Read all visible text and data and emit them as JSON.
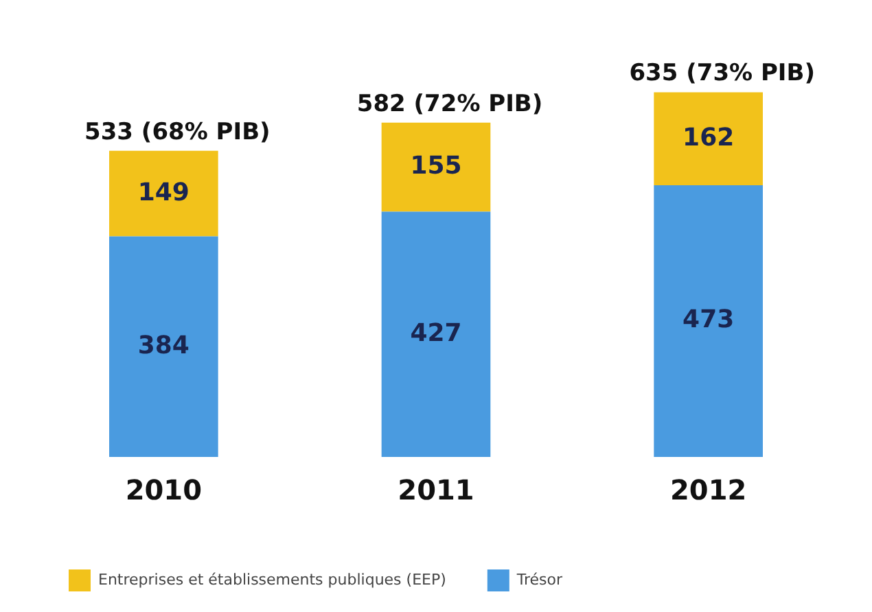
{
  "chart_data": {
    "type": "bar",
    "stacked": true,
    "categories": [
      "2010",
      "2011",
      "2012"
    ],
    "series": [
      {
        "name": "Trésor",
        "color": "#4a9be0",
        "values": [
          384,
          427,
          473
        ]
      },
      {
        "name": "Entreprises et établissements publiques (EEP)",
        "color": "#f2c21b",
        "values": [
          149,
          155,
          162
        ]
      }
    ],
    "data_labels": true,
    "totals": [
      "533 (68% PIB)",
      "582 (72% PIB)",
      "635 (73% PIB)"
    ],
    "legend": "bottom",
    "grid": false
  }
}
